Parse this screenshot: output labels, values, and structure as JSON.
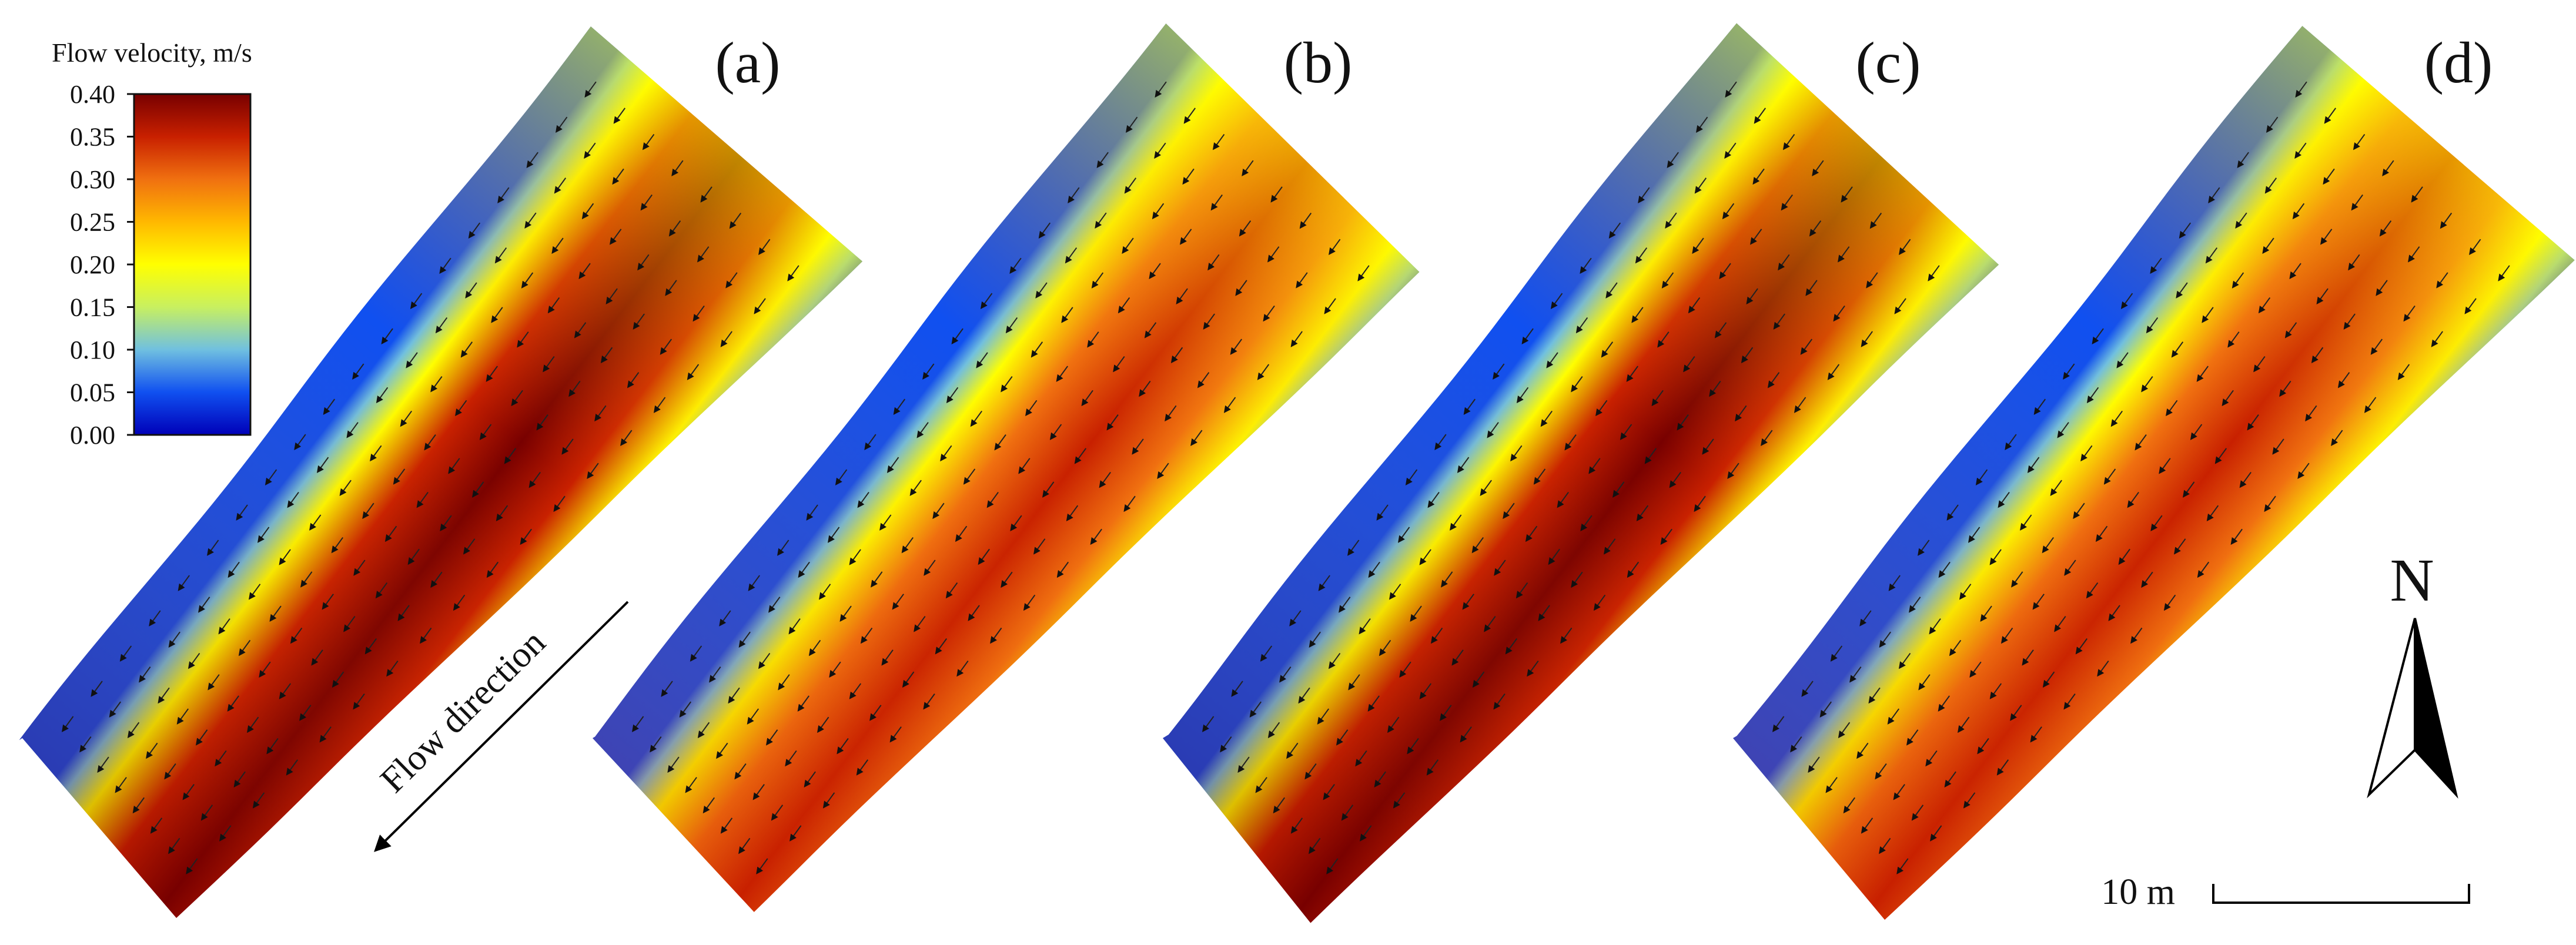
{
  "chart_data": {
    "type": "heatmap",
    "colorbar": {
      "title": "Flow velocity, m/s",
      "ticks": [
        "0.40",
        "0.35",
        "0.30",
        "0.25",
        "0.20",
        "0.15",
        "0.10",
        "0.05",
        "0.00"
      ],
      "range": [
        0.0,
        0.4
      ],
      "colormap": [
        "#0000b8",
        "#1050f0",
        "#70c0e0",
        "#c8f060",
        "#ffff00",
        "#ffb800",
        "#f07010",
        "#c82000",
        "#780000"
      ]
    },
    "panels": [
      {
        "label": "(a)",
        "peak_velocity": 0.4,
        "bank_velocity": 0.05
      },
      {
        "label": "(b)",
        "peak_velocity": 0.36,
        "bank_velocity": 0.05
      },
      {
        "label": "(c)",
        "peak_velocity": 0.4,
        "bank_velocity": 0.05
      },
      {
        "label": "(d)",
        "peak_velocity": 0.34,
        "bank_velocity": 0.05
      }
    ],
    "annotations": {
      "flow_direction": "Flow direction"
    },
    "north_arrow": "N",
    "scale_bar": {
      "label": "10 m",
      "length_m": 10
    }
  }
}
